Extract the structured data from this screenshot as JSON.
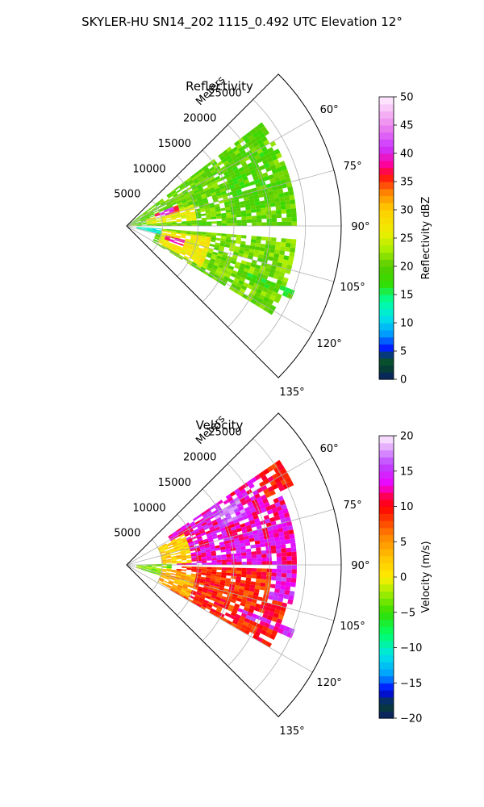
{
  "figure": {
    "title": "SKYLER-HU  SN14_202  1115_0.492 UTC Elevation 12°"
  },
  "colors": {
    "axis": "#000000",
    "grid": "#b0b0b0",
    "background": "#ffffff"
  },
  "chart_data": [
    {
      "type": "heatmap",
      "projection": "polar sector",
      "title": "Reflectivity",
      "radial_axis_label": "Meters",
      "radial_ticks": [
        "5000",
        "10000",
        "15000",
        "20000",
        "25000"
      ],
      "radial_tick_values": [
        5000,
        10000,
        15000,
        20000,
        25000
      ],
      "radial_range": [
        0,
        30000
      ],
      "angular_ticks": [
        "60°",
        "75°",
        "90°",
        "105°",
        "120°",
        "135°"
      ],
      "angular_tick_values": [
        60,
        75,
        90,
        105,
        120,
        135
      ],
      "angular_range": [
        45,
        135
      ],
      "grid": true,
      "colorbar": {
        "label": "Reflectivity dBZ",
        "range": [
          0,
          50
        ],
        "ticks": [
          "0",
          "5",
          "10",
          "15",
          "20",
          "25",
          "30",
          "35",
          "40",
          "45",
          "50"
        ],
        "tick_values": [
          0,
          5,
          10,
          15,
          20,
          25,
          30,
          35,
          40,
          45,
          50
        ],
        "stops": [
          [
            0,
            "#0b1d6b"
          ],
          [
            2,
            "#063f33"
          ],
          [
            4,
            "#0a5c2a"
          ],
          [
            5,
            "#0000ff"
          ],
          [
            8,
            "#0099ff"
          ],
          [
            11,
            "#00e6e6"
          ],
          [
            14,
            "#00ff99"
          ],
          [
            17,
            "#33dd00"
          ],
          [
            20,
            "#55cc00"
          ],
          [
            23,
            "#aaee00"
          ],
          [
            26,
            "#eeee00"
          ],
          [
            30,
            "#ffd000"
          ],
          [
            33,
            "#ff8800"
          ],
          [
            36,
            "#ff1010"
          ],
          [
            38,
            "#ff0099"
          ],
          [
            41,
            "#cc33ff"
          ],
          [
            45,
            "#ee88ee"
          ],
          [
            50,
            "#fff0ff"
          ]
        ]
      },
      "regions": [
        {
          "angles": [
            52,
            90
          ],
          "range": [
            0,
            24000
          ],
          "value": 20
        },
        {
          "angles": [
            62,
            82
          ],
          "range": [
            15000,
            22500
          ],
          "value": 19
        },
        {
          "angles": [
            72,
            86
          ],
          "range": [
            3000,
            10000
          ],
          "value": 26
        },
        {
          "angles": [
            67,
            75
          ],
          "range": [
            4500,
            8000
          ],
          "value": 36
        },
        {
          "angles": [
            68,
            73
          ],
          "range": [
            5000,
            7000
          ],
          "value": 41
        },
        {
          "angles": [
            95,
            122
          ],
          "range": [
            4500,
            24000
          ],
          "value": 21
        },
        {
          "angles": [
            98,
            118
          ],
          "range": [
            5000,
            12000
          ],
          "value": 27
        },
        {
          "angles": [
            104,
            110
          ],
          "range": [
            5500,
            8500
          ],
          "value": 37
        },
        {
          "angles": [
            94,
            104
          ],
          "range": [
            1500,
            5000
          ],
          "value": 12
        },
        {
          "angles": [
            111,
            114
          ],
          "range": [
            17000,
            25000
          ],
          "value": 18
        }
      ]
    },
    {
      "type": "heatmap",
      "projection": "polar sector",
      "title": "Velocity",
      "radial_axis_label": "Meters",
      "radial_ticks": [
        "5000",
        "10000",
        "15000",
        "20000",
        "25000"
      ],
      "radial_tick_values": [
        5000,
        10000,
        15000,
        20000,
        25000
      ],
      "radial_range": [
        0,
        30000
      ],
      "angular_ticks": [
        "60°",
        "75°",
        "90°",
        "105°",
        "120°",
        "135°"
      ],
      "angular_tick_values": [
        60,
        75,
        90,
        105,
        120,
        135
      ],
      "angular_range": [
        45,
        135
      ],
      "grid": true,
      "colorbar": {
        "label": "Velocity (m/s)",
        "range": [
          -20,
          20
        ],
        "ticks": [
          "−20",
          "−15",
          "−10",
          "−5",
          "0",
          "5",
          "10",
          "15",
          "20"
        ],
        "tick_values": [
          -20,
          -15,
          -10,
          -5,
          0,
          5,
          10,
          15,
          20
        ],
        "stops": [
          [
            -20,
            "#0b1d6b"
          ],
          [
            -18,
            "#063f33"
          ],
          [
            -16,
            "#0000ff"
          ],
          [
            -14,
            "#0099ff"
          ],
          [
            -11,
            "#00e6e6"
          ],
          [
            -8,
            "#00ff66"
          ],
          [
            -5,
            "#33dd00"
          ],
          [
            -2,
            "#aaee00"
          ],
          [
            0,
            "#ffee00"
          ],
          [
            3,
            "#ffc000"
          ],
          [
            6,
            "#ff8000"
          ],
          [
            8,
            "#ff4000"
          ],
          [
            10,
            "#ff0000"
          ],
          [
            12,
            "#ff0077"
          ],
          [
            13,
            "#ee00ff"
          ],
          [
            16,
            "#bb44ff"
          ],
          [
            20,
            "#fff0ff"
          ]
        ]
      },
      "regions": [
        {
          "angles": [
            55,
            90
          ],
          "range": [
            7000,
            24000
          ],
          "value": 13
        },
        {
          "angles": [
            58,
            68
          ],
          "range": [
            14000,
            18000
          ],
          "value": 16
        },
        {
          "angles": [
            62,
            88
          ],
          "range": [
            5000,
            9000
          ],
          "value": 2
        },
        {
          "angles": [
            88,
            108
          ],
          "range": [
            1500,
            6500
          ],
          "value": -3
        },
        {
          "angles": [
            92,
            120
          ],
          "range": [
            7000,
            23000
          ],
          "value": 9
        },
        {
          "angles": [
            96,
            118
          ],
          "range": [
            5000,
            10000
          ],
          "value": 4
        },
        {
          "angles": [
            90,
            103
          ],
          "range": [
            20000,
            24000
          ],
          "value": 14
        },
        {
          "angles": [
            111,
            114
          ],
          "range": [
            17000,
            25000
          ],
          "value": 14
        },
        {
          "angles": [
            55,
            65
          ],
          "range": [
            22000,
            26000
          ],
          "value": 10
        }
      ]
    }
  ]
}
